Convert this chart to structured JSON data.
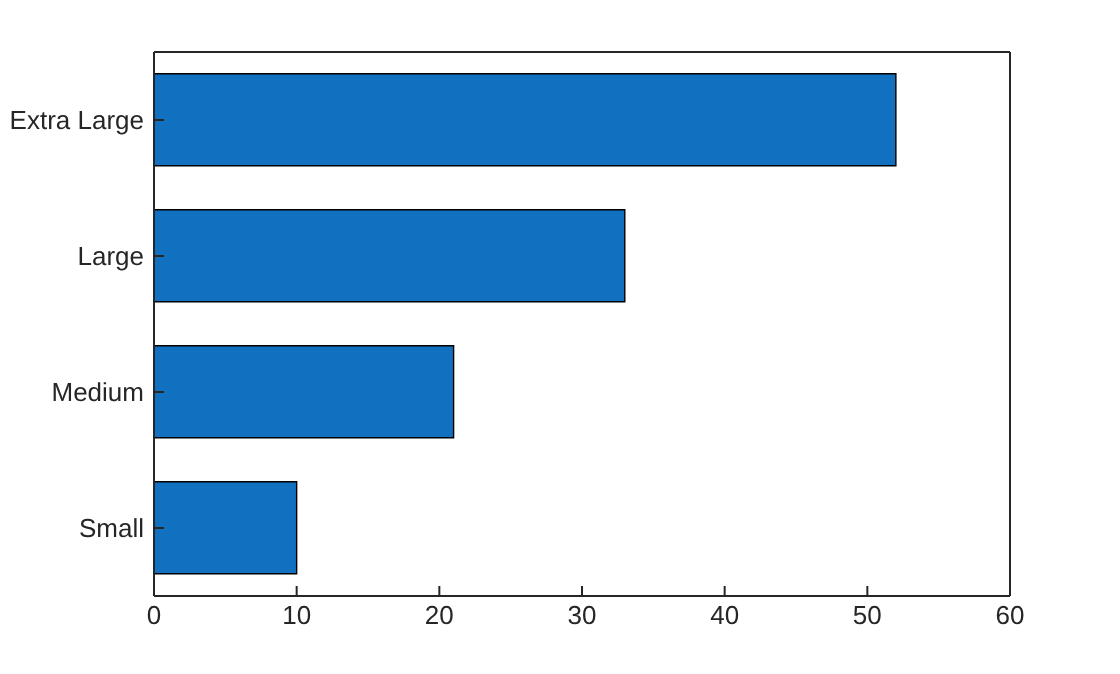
{
  "chart_data": {
    "type": "bar",
    "orientation": "horizontal",
    "categories": [
      "Extra Large",
      "Large",
      "Medium",
      "Small"
    ],
    "values": [
      52,
      33,
      21,
      10
    ],
    "color": "#1170c0",
    "xlim": [
      0,
      60
    ],
    "xticks": [
      0,
      10,
      20,
      30,
      40,
      50,
      60
    ]
  }
}
